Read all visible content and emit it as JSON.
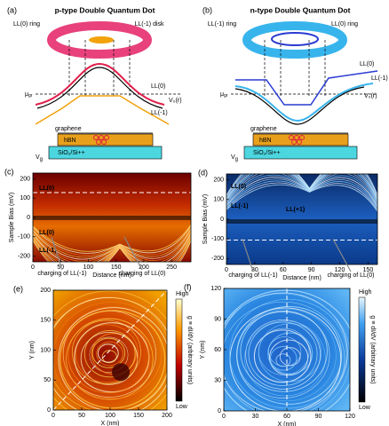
{
  "diagrams": [
    {
      "label": "(a)",
      "title": "p-type Double Quantum Dot",
      "ring_outer": "LL(0) ring",
      "ring_inner": "LL(-1) disk",
      "curve_upper": "LL(0)",
      "curve_lower": "LL(-1)",
      "mu": "μ",
      "mu_sub": "gr",
      "potential": "V₀(r)",
      "graphene": "graphene",
      "hbn": "hBN",
      "substrate": "SiO₂/Si++",
      "gate": "V",
      "gate_sub": "g"
    },
    {
      "label": "(b)",
      "title": "n-type Double Quantum Dot",
      "ring_outer": "LL(-1) ring",
      "ring_inner": "LL(0) ring",
      "curve_upper": "LL(0)",
      "curve_lower": "LL(-1)",
      "mu": "μ",
      "mu_sub": "gr",
      "potential": "V₀(r)",
      "graphene": "graphene",
      "hbn": "hBN",
      "substrate": "SiO₂/Si++",
      "gate": "V",
      "gate_sub": "g"
    }
  ],
  "chart_data": [
    {
      "type": "heatmap",
      "label": "(c)",
      "xlabel": "Distance (nm)",
      "ylabel": "Sample Bias (mV)",
      "xlim": [
        0,
        285
      ],
      "xticks": [
        0,
        50,
        100,
        150,
        200,
        250
      ],
      "ylim": [
        -230,
        230
      ],
      "yticks": [
        -200,
        -100,
        0,
        100,
        200
      ],
      "colormap": "hot",
      "annotations": [
        "LL(0)",
        "LL(0)",
        "LL(-1)",
        "charging of LL(-1)",
        "charging of LL(0)"
      ]
    },
    {
      "type": "heatmap",
      "label": "(d)",
      "xlabel": "Distance (nm)",
      "ylabel": "Sample Bias (mV)",
      "xlim": [
        0,
        160
      ],
      "xticks": [
        0,
        30,
        60,
        90,
        120,
        150
      ],
      "ylim": [
        -230,
        230
      ],
      "yticks": [
        -200,
        -100,
        0,
        100,
        200
      ],
      "colormap": "blue",
      "annotations": [
        "LL(0)",
        "LL(-1)",
        "LL(+1)",
        "charging of LL(-1)",
        "charging of LL(0)"
      ]
    },
    {
      "type": "heatmap",
      "label": "(e)",
      "xlabel": "X (nm)",
      "ylabel": "Y (nm)",
      "xlim": [
        0,
        200
      ],
      "xticks": [
        0,
        50,
        100,
        150,
        200
      ],
      "ylim": [
        0,
        200
      ],
      "yticks": [
        0,
        50,
        100,
        150,
        200
      ],
      "colormap": "hot",
      "colorbar": {
        "high": "High",
        "low": "Low",
        "label": "g ≡ dI/dV (arbitrary units)"
      }
    },
    {
      "type": "heatmap",
      "label": "(f)",
      "xlabel": "X (nm)",
      "ylabel": "Y (nm)",
      "xlim": [
        0,
        120
      ],
      "xticks": [
        0,
        30,
        60,
        90,
        120
      ],
      "ylim": [
        0,
        120
      ],
      "yticks": [
        0,
        30,
        60,
        90,
        120
      ],
      "colormap": "blue",
      "colorbar": {
        "high": "High",
        "low": "Low",
        "label": "g ≡ dI/dV (arbitrary units)"
      }
    }
  ]
}
